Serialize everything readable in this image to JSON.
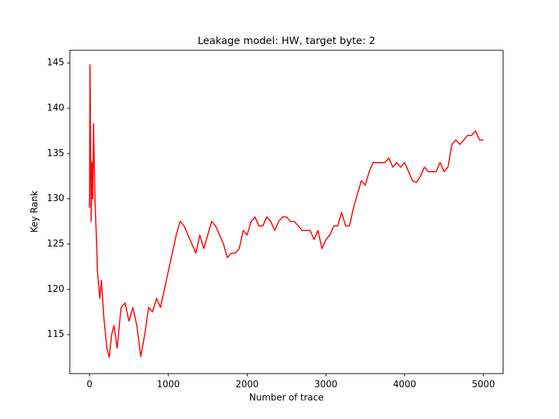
{
  "chart_data": {
    "type": "line",
    "title": "Leakage model: HW, target byte: 2",
    "xlabel": "Number of trace",
    "ylabel": "Key Rank",
    "x": [
      0,
      5,
      20,
      30,
      40,
      50,
      70,
      90,
      100,
      130,
      150,
      180,
      220,
      250,
      280,
      310,
      350,
      400,
      450,
      500,
      550,
      600,
      650,
      700,
      750,
      800,
      850,
      900,
      950,
      1000,
      1050,
      1100,
      1150,
      1200,
      1250,
      1300,
      1350,
      1400,
      1450,
      1500,
      1550,
      1600,
      1650,
      1700,
      1750,
      1800,
      1850,
      1900,
      1950,
      2000,
      2050,
      2100,
      2150,
      2200,
      2250,
      2300,
      2350,
      2400,
      2450,
      2500,
      2550,
      2600,
      2650,
      2700,
      2750,
      2800,
      2850,
      2900,
      2950,
      3000,
      3050,
      3100,
      3150,
      3200,
      3250,
      3300,
      3350,
      3400,
      3450,
      3500,
      3550,
      3600,
      3650,
      3700,
      3750,
      3800,
      3850,
      3900,
      3950,
      4000,
      4050,
      4100,
      4150,
      4200,
      4250,
      4300,
      4350,
      4400,
      4450,
      4500,
      4550,
      4600,
      4650,
      4700,
      4750,
      4800,
      4850,
      4900,
      4950,
      5000
    ],
    "series": [
      {
        "name": "key rank",
        "color": "#ff0000",
        "values": [
          129,
          144.8,
          127.5,
          134,
          130,
          138.3,
          129.5,
          125,
          122,
          119,
          121,
          117,
          113.5,
          112.5,
          115,
          116,
          113.5,
          118,
          118.5,
          116.5,
          118,
          116,
          112.6,
          115,
          118,
          117.5,
          119,
          118,
          120,
          122,
          124,
          126,
          127.5,
          127,
          126,
          125,
          124,
          126,
          124.5,
          126,
          127.5,
          127,
          126,
          125,
          123.5,
          124,
          124,
          124.5,
          126.5,
          126,
          127.5,
          128,
          127,
          127,
          128,
          127.5,
          126.5,
          127.5,
          128,
          128,
          127.5,
          127.5,
          127,
          126.5,
          126.5,
          126.5,
          125.5,
          126.5,
          124.5,
          125.5,
          126,
          127,
          127,
          128.5,
          127,
          127,
          129,
          130.5,
          132,
          131.5,
          133,
          134,
          134,
          134,
          134,
          134.5,
          133.5,
          134,
          133.5,
          134,
          133,
          132,
          131.8,
          132.5,
          133.5,
          133,
          133,
          133,
          134,
          133,
          133.5,
          136,
          136.5,
          136,
          136.5,
          137,
          137,
          137.5,
          136.5,
          136.5
        ]
      }
    ],
    "xlim": [
      -250,
      5250
    ],
    "ylim": [
      110.7,
      146.4
    ],
    "xticks": [
      0,
      1000,
      2000,
      3000,
      4000,
      5000
    ],
    "yticks": [
      115,
      120,
      125,
      130,
      135,
      140,
      145
    ],
    "grid": false
  }
}
